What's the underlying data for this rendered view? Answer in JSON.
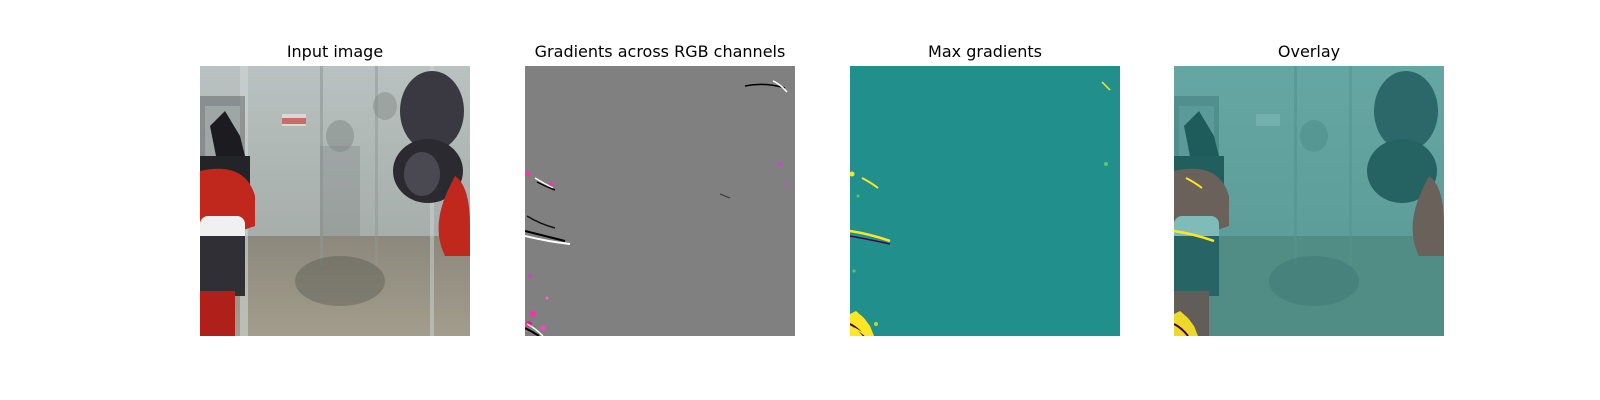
{
  "figure": {
    "panels": [
      {
        "title": "Input image"
      },
      {
        "title": "Gradients across RGB channels"
      },
      {
        "title": "Max gradients"
      },
      {
        "title": "Overlay"
      }
    ]
  },
  "colors": {
    "gradient_background": "#808080",
    "max_gradient_background": "#21908c",
    "overlay_tint": "#5eb8ae",
    "robot_red": "#c0281e",
    "robot_dark": "#3a3840",
    "gradient_highlight": "#fde725"
  }
}
